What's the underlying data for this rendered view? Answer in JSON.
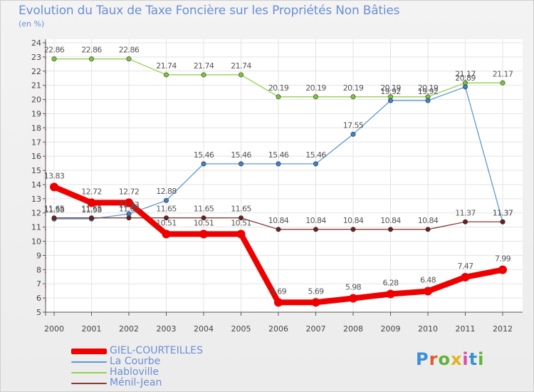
{
  "header": {
    "title": "Evolution du Taux de Taxe Foncière sur les Propriétés Non Bâties",
    "subtitle": "(en %)"
  },
  "logo": {
    "text": "Proxiti",
    "colors": [
      "#3b8fd9",
      "#e05a2b",
      "#5fb33a",
      "#e0b320",
      "#d94fa3",
      "#3b8fd9",
      "#5fb33a"
    ]
  },
  "chart_data": {
    "type": "line",
    "categories": [
      "2000",
      "2001",
      "2002",
      "2003",
      "2004",
      "2005",
      "2006",
      "2007",
      "2008",
      "2009",
      "2010",
      "2011",
      "2012"
    ],
    "ylim": [
      5,
      24
    ],
    "yticks": [
      5,
      6,
      7,
      8,
      9,
      10,
      11,
      12,
      13,
      14,
      15,
      16,
      17,
      18,
      19,
      20,
      21,
      22,
      23,
      24
    ],
    "grid": true,
    "legend_position": "bottom-left",
    "series": [
      {
        "name": "GIEL-COURTEILLES",
        "color": "#ee0000",
        "marker": "#ee0000",
        "thick": true,
        "values": [
          13.83,
          12.72,
          12.72,
          10.51,
          10.51,
          10.51,
          5.69,
          5.69,
          5.98,
          6.28,
          6.48,
          7.47,
          7.99
        ],
        "labels": [
          "13.83",
          "12.72",
          "12.72",
          "10.51",
          "10.51",
          "10.51",
          "5.69",
          "5.69",
          "5.98",
          "6.28",
          "6.48",
          "7.47",
          "7.99"
        ]
      },
      {
        "name": "La Courbe",
        "color": "#5b9ad5",
        "marker": "#3f7fc8",
        "thick": false,
        "values": [
          11.58,
          11.58,
          11.93,
          12.88,
          15.46,
          15.46,
          15.46,
          15.46,
          17.55,
          19.92,
          19.92,
          20.89,
          11.37
        ],
        "labels": [
          "11.58",
          "11.58",
          "11.93",
          "12.88",
          "15.46",
          "15.46",
          "15.46",
          "15.46",
          "17.55",
          "19.92",
          "19.92",
          "20.89",
          "11.37"
        ]
      },
      {
        "name": "Habloville",
        "color": "#92d050",
        "marker": "#7cc33b",
        "thick": false,
        "values": [
          22.86,
          22.86,
          22.86,
          21.74,
          21.74,
          21.74,
          20.19,
          20.19,
          20.19,
          20.19,
          20.19,
          21.17,
          21.17
        ],
        "labels": [
          "22.86",
          "22.86",
          "22.86",
          "21.74",
          "21.74",
          "21.74",
          "20.19",
          "20.19",
          "20.19",
          "20.19",
          "20.19",
          "21.17",
          "21.17"
        ]
      },
      {
        "name": "Ménil-Jean",
        "color": "#8b3a3a",
        "marker": "#6b1f1f",
        "thick": false,
        "values": [
          11.65,
          11.65,
          11.65,
          11.65,
          11.65,
          11.65,
          10.84,
          10.84,
          10.84,
          10.84,
          10.84,
          11.37,
          11.37
        ],
        "labels": [
          "11.65",
          "11.65",
          "11.65",
          "11.65",
          "11.65",
          "11.65",
          "10.84",
          "10.84",
          "10.84",
          "10.84",
          "10.84",
          "11.37",
          "11.37"
        ]
      }
    ]
  }
}
